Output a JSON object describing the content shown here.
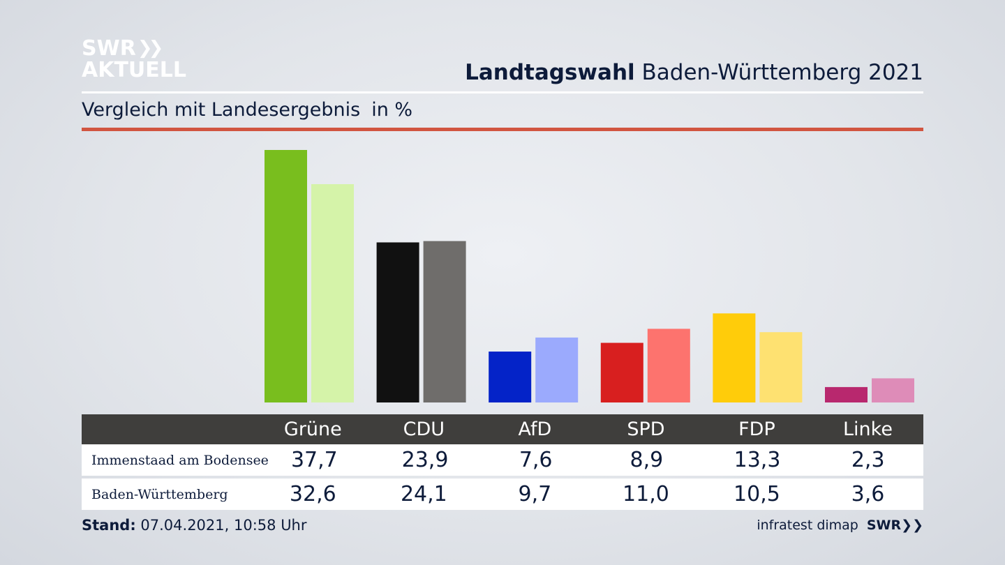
{
  "logo": {
    "line1": "SWR",
    "line2": "AKTUELL",
    "arrows": "❯❯"
  },
  "header": {
    "title_bold": "Landtagswahl",
    "title_rest": "Baden-Württemberg 2021"
  },
  "subtitle": {
    "text": "Vergleich mit Landesergebnis",
    "unit": "in %"
  },
  "colors": {
    "accent_rule": "#d15540"
  },
  "chart_data": {
    "type": "bar",
    "categories": [
      "Grüne",
      "CDU",
      "AfD",
      "SPD",
      "FDP",
      "Linke"
    ],
    "series": [
      {
        "name": "Immenstaad am Bodensee",
        "values": [
          37.7,
          23.9,
          7.6,
          8.9,
          13.3,
          2.3
        ],
        "colors": [
          "#79be1e",
          "#111111",
          "#0423c8",
          "#d81f1f",
          "#ffcc0a",
          "#b8286e"
        ]
      },
      {
        "name": "Baden-Württemberg",
        "values": [
          32.6,
          24.1,
          9.7,
          11.0,
          10.5,
          3.6
        ],
        "colors": [
          "#d5f3a9",
          "#6f6d6b",
          "#9baafd",
          "#fd736e",
          "#fee171",
          "#de8cb8"
        ]
      }
    ],
    "ylim": [
      0,
      37.7
    ]
  },
  "table": {
    "headers": [
      "Grüne",
      "CDU",
      "AfD",
      "SPD",
      "FDP",
      "Linke"
    ],
    "rows": [
      {
        "label": "Immenstaad am Bodensee",
        "values": [
          "37,7",
          "23,9",
          "7,6",
          "8,9",
          "13,3",
          "2,3"
        ]
      },
      {
        "label": "Baden-Württemberg",
        "values": [
          "32,6",
          "24,1",
          "9,7",
          "11,0",
          "10,5",
          "3,6"
        ]
      }
    ]
  },
  "footer": {
    "stand_label": "Stand:",
    "stand_value": "07.04.2021, 10:58 Uhr",
    "source": "infratest dimap",
    "brand": "SWR",
    "brand_arrows": "❯❯"
  }
}
